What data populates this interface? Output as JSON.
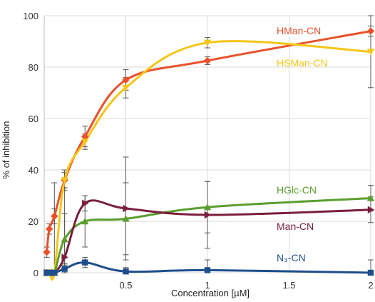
{
  "chart_data": {
    "type": "line",
    "xlabel": "Concentration [µM]",
    "ylabel": "% of inhibition",
    "xlim": [
      0,
      2
    ],
    "ylim": [
      0,
      100
    ],
    "x_ticks": [
      0.5,
      1,
      1.5,
      2
    ],
    "x_tick_labels": [
      "0.5",
      "1",
      "1.5",
      "2"
    ],
    "y_ticks": [
      0,
      20,
      40,
      60,
      80,
      100
    ],
    "y_tick_labels": [
      "0",
      "20",
      "40",
      "60",
      "80",
      "100"
    ],
    "grid": "horizontal",
    "legend": "inline labels at the right",
    "series": [
      {
        "name": "HMan-CN",
        "color": "#e8512b",
        "marker": "diamond",
        "x": [
          0.0156,
          0.0313,
          0.0625,
          0.125,
          0.25,
          0.5,
          1,
          2
        ],
        "y": [
          8,
          17,
          22,
          36,
          53,
          75,
          82.5,
          94
        ],
        "err": [
          2,
          2,
          3,
          3,
          4,
          4,
          1.5,
          2
        ]
      },
      {
        "name": "HSMan-CN",
        "color": "#f5c518",
        "marker": "triangle-down",
        "x": [
          0.0156,
          0.0313,
          0.0625,
          0.125,
          0.25,
          0.5,
          1,
          2
        ],
        "y": [
          0,
          0,
          0,
          36,
          51,
          72,
          89.5,
          86
        ],
        "err": [
          0,
          0,
          0,
          4,
          3,
          4,
          2,
          14
        ]
      },
      {
        "name": "HGlc-CN",
        "color": "#5a9e2f",
        "marker": "triangle-up",
        "x": [
          0.0156,
          0.0313,
          0.0625,
          0.125,
          0.25,
          0.5,
          1,
          2
        ],
        "y": [
          0,
          0,
          0,
          13,
          20,
          21,
          25.5,
          29
        ],
        "err": [
          0,
          0,
          0,
          10,
          10,
          14,
          10,
          5
        ]
      },
      {
        "name": "Man-CN",
        "color": "#7a1e3c",
        "marker": "triangle-right",
        "x": [
          0.0156,
          0.0313,
          0.0625,
          0.125,
          0.25,
          0.5,
          1,
          2
        ],
        "y": [
          0,
          0,
          0,
          6,
          27,
          25,
          22.5,
          24.5
        ],
        "err": [
          0,
          0,
          35,
          27,
          3,
          20,
          13,
          5
        ]
      },
      {
        "name": "N₃-CN",
        "color": "#1f4e8c",
        "marker": "square",
        "x": [
          0.0156,
          0.0313,
          0.0625,
          0.125,
          0.25,
          0.5,
          1,
          2
        ],
        "y": [
          0,
          0,
          0,
          1.5,
          4,
          0.5,
          1,
          0
        ],
        "err": [
          0,
          0,
          0,
          2,
          2,
          1.5,
          4,
          5
        ]
      }
    ]
  }
}
